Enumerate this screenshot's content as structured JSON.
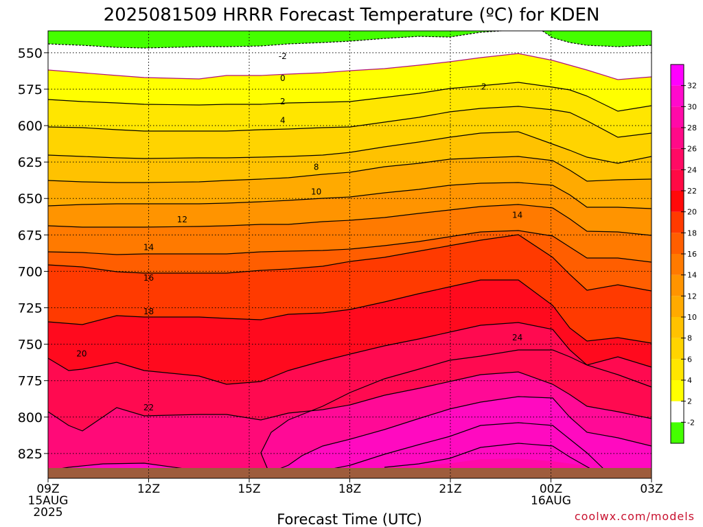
{
  "chart_data": {
    "type": "contour",
    "title": "2025081509 HRRR Forecast Temperature (ºC) for KDEN",
    "xlabel": "Forecast Time (UTC)",
    "ylabel": "",
    "credit": "coolwx.com/models",
    "y_ticks": [
      550,
      575,
      600,
      625,
      650,
      675,
      700,
      725,
      750,
      775,
      800,
      825
    ],
    "ylim": [
      842,
      535
    ],
    "x_tick_labels": [
      {
        "hour": 0,
        "lines": [
          "09Z",
          "15AUG",
          "2025"
        ]
      },
      {
        "hour": 3,
        "lines": [
          "12Z"
        ]
      },
      {
        "hour": 6,
        "lines": [
          "15Z"
        ]
      },
      {
        "hour": 9,
        "lines": [
          "18Z"
        ]
      },
      {
        "hour": 12,
        "lines": [
          "21Z"
        ]
      },
      {
        "hour": 15,
        "lines": [
          "00Z",
          "16AUG"
        ]
      },
      {
        "hour": 18,
        "lines": [
          "03Z"
        ]
      }
    ],
    "colorbar_labels": [
      "-2",
      "2",
      "4",
      "6",
      "8",
      "10",
      "12",
      "14",
      "16",
      "18",
      "20",
      "22",
      "24",
      "26",
      "28",
      "30",
      "32"
    ],
    "colorbar_colors": [
      "#44ff00",
      "#ffffff",
      "#ffff00",
      "#ffe600",
      "#ffd400",
      "#ffc200",
      "#ffaa00",
      "#ff9400",
      "#ff7a00",
      "#ff5e00",
      "#ff3a00",
      "#ff0a0a",
      "#ff0a44",
      "#ff0a64",
      "#ff0a88",
      "#ff0aa8",
      "#ff0acc",
      "#ff00ff"
    ],
    "contour_labels": [
      {
        "value": "-2",
        "hour": 7.0,
        "p": 552
      },
      {
        "value": "0",
        "hour": 7.0,
        "p": 567
      },
      {
        "value": "2",
        "hour": 7.0,
        "p": 583
      },
      {
        "value": "2",
        "hour": 13.0,
        "p": 573
      },
      {
        "value": "4",
        "hour": 7.0,
        "p": 596
      },
      {
        "value": "8",
        "hour": 8.0,
        "p": 628
      },
      {
        "value": "10",
        "hour": 8.0,
        "p": 645
      },
      {
        "value": "12",
        "hour": 4.0,
        "p": 664
      },
      {
        "value": "14",
        "hour": 3.0,
        "p": 683
      },
      {
        "value": "14",
        "hour": 14.0,
        "p": 661
      },
      {
        "value": "16",
        "hour": 3.0,
        "p": 704
      },
      {
        "value": "18",
        "hour": 3.0,
        "p": 727
      },
      {
        "value": "20",
        "hour": 1.0,
        "p": 756
      },
      {
        "value": "22",
        "hour": 3.0,
        "p": 793
      },
      {
        "value": "24",
        "hour": 14.0,
        "p": 745
      }
    ]
  }
}
